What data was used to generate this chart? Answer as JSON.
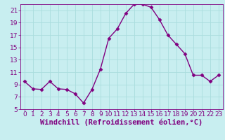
{
  "x": [
    0,
    1,
    2,
    3,
    4,
    5,
    6,
    7,
    8,
    9,
    10,
    11,
    12,
    13,
    14,
    15,
    16,
    17,
    18,
    19,
    20,
    21,
    22,
    23
  ],
  "y": [
    9.5,
    8.3,
    8.2,
    9.5,
    8.3,
    8.2,
    7.5,
    6.0,
    8.2,
    11.5,
    16.5,
    18.0,
    20.5,
    22.0,
    22.0,
    21.5,
    19.5,
    17.0,
    15.5,
    14.0,
    10.5,
    10.5,
    9.5,
    10.5
  ],
  "line_color": "#800080",
  "marker": "D",
  "marker_size": 2.5,
  "bg_color": "#c8eef0",
  "grid_color": "#aadddd",
  "xlabel": "Windchill (Refroidissement éolien,°C)",
  "xlabel_color": "#800080",
  "tick_color": "#800080",
  "ylim": [
    5,
    22
  ],
  "xlim": [
    -0.5,
    23.5
  ],
  "yticks": [
    5,
    7,
    9,
    11,
    13,
    15,
    17,
    19,
    21
  ],
  "xticks": [
    0,
    1,
    2,
    3,
    4,
    5,
    6,
    7,
    8,
    9,
    10,
    11,
    12,
    13,
    14,
    15,
    16,
    17,
    18,
    19,
    20,
    21,
    22,
    23
  ],
  "font_size": 6.5,
  "xlabel_fontsize": 7.5,
  "line_width": 1.0
}
